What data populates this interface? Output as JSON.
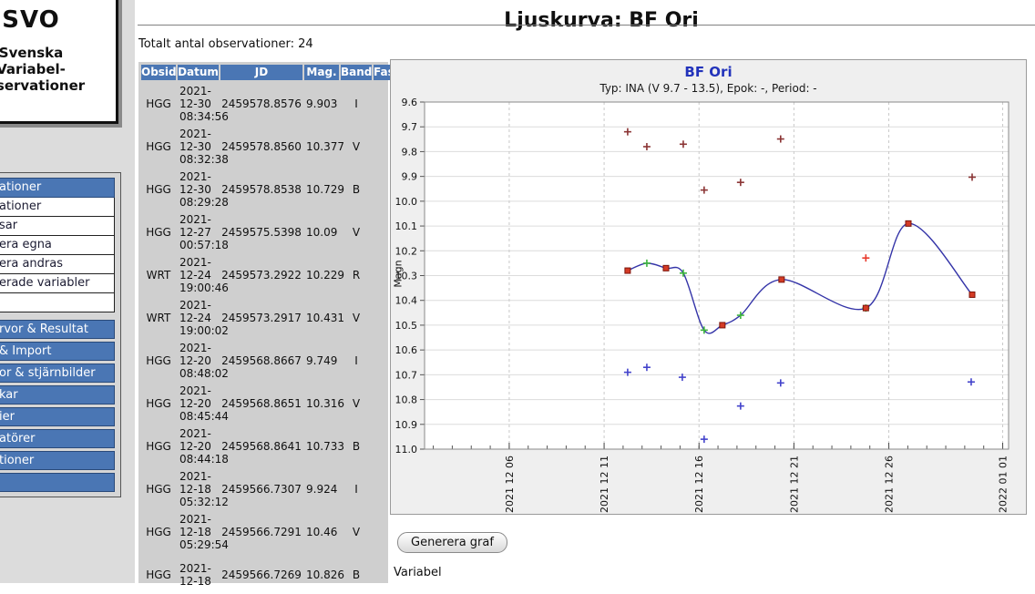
{
  "page": {
    "title": "Ljuskurva: BF Ori"
  },
  "sidebar": {
    "logo": {
      "acronym": "SVO",
      "line1": "Svenska",
      "line2": "Variabel-",
      "line3": "observationer"
    },
    "menu": {
      "header": "ationer",
      "white_items": [
        "ationer",
        "sar",
        "era egna",
        "era andras",
        "erade variabler",
        ""
      ],
      "blue_items": [
        "rvor & Resultat",
        "& Import",
        "or & stjärnbilder",
        "kar",
        "ier",
        "atörer",
        "tioner",
        ""
      ]
    }
  },
  "content": {
    "total_label": "Totalt antal observationer: 24",
    "generate_button": "Generera graf",
    "variable_label": "Variabel"
  },
  "table": {
    "headers": [
      "Obsid",
      "Datum",
      "JD",
      "Mag.",
      "Band",
      "Fas"
    ],
    "rows": [
      {
        "obsid": "HGG",
        "date_y": "2021-",
        "date_md": "12-30",
        "time": "08:34:56",
        "jd": "2459578.8576",
        "mag": "9.903",
        "band": "I",
        "fas": ""
      },
      {
        "obsid": "HGG",
        "date_y": "2021-",
        "date_md": "12-30",
        "time": "08:32:38",
        "jd": "2459578.8560",
        "mag": "10.377",
        "band": "V",
        "fas": ""
      },
      {
        "obsid": "HGG",
        "date_y": "2021-",
        "date_md": "12-30",
        "time": "08:29:28",
        "jd": "2459578.8538",
        "mag": "10.729",
        "band": "B",
        "fas": ""
      },
      {
        "obsid": "HGG",
        "date_y": "2021-",
        "date_md": "12-27",
        "time": "00:57:18",
        "jd": "2459575.5398",
        "mag": "10.09",
        "band": "V",
        "fas": ""
      },
      {
        "obsid": "WRT",
        "date_y": "2021-",
        "date_md": "12-24",
        "time": "19:00:46",
        "jd": "2459573.2922",
        "mag": "10.229",
        "band": "R",
        "fas": ""
      },
      {
        "obsid": "WRT",
        "date_y": "2021-",
        "date_md": "12-24",
        "time": "19:00:02",
        "jd": "2459573.2917",
        "mag": "10.431",
        "band": "V",
        "fas": ""
      },
      {
        "obsid": "HGG",
        "date_y": "2021-",
        "date_md": "12-20",
        "time": "08:48:02",
        "jd": "2459568.8667",
        "mag": "9.749",
        "band": "I",
        "fas": ""
      },
      {
        "obsid": "HGG",
        "date_y": "2021-",
        "date_md": "12-20",
        "time": "08:45:44",
        "jd": "2459568.8651",
        "mag": "10.316",
        "band": "V",
        "fas": ""
      },
      {
        "obsid": "HGG",
        "date_y": "2021-",
        "date_md": "12-20",
        "time": "08:44:18",
        "jd": "2459568.8641",
        "mag": "10.733",
        "band": "B",
        "fas": ""
      },
      {
        "obsid": "HGG",
        "date_y": "2021-",
        "date_md": "12-18",
        "time": "05:32:12",
        "jd": "2459566.7307",
        "mag": "9.924",
        "band": "I",
        "fas": ""
      },
      {
        "obsid": "HGG",
        "date_y": "2021-",
        "date_md": "12-18",
        "time": "05:29:54",
        "jd": "2459566.7291",
        "mag": "10.46",
        "band": "V",
        "fas": ""
      },
      {
        "obsid": "HGG",
        "date_y": "2021-",
        "date_md": "12-18",
        "time": "",
        "jd": "2459566.7269",
        "mag": "10.826",
        "band": "B",
        "fas": ""
      }
    ]
  },
  "chart_data": {
    "type": "scatter",
    "title": "BF Ori",
    "subtitle": "Typ: INA (V 9.7 - 13.5), Epok: -, Period: -",
    "ylabel": "Magn",
    "x_unit": "days since 2021-12-01 00:00 UT",
    "xlim": [
      0.54,
      31.31
    ],
    "ylim": [
      9.6,
      11.0
    ],
    "y_axis_inverted_magnitude": true,
    "y_tick_step": 0.1,
    "x_ticks": [
      {
        "day": 5,
        "label": "2021 12 06"
      },
      {
        "day": 10,
        "label": "2021 12 11"
      },
      {
        "day": 15,
        "label": "2021 12 16"
      },
      {
        "day": 20,
        "label": "2021 12 21"
      },
      {
        "day": 25,
        "label": "2021 12 26"
      },
      {
        "day": 31,
        "label": "2022 01 01"
      }
    ],
    "x_minor_tick_days": [
      1,
      31
    ],
    "grid": true,
    "legend": "none",
    "curve_color": "#3434a8",
    "series": [
      {
        "name": "I-band (dark red plus)",
        "marker": "plus",
        "color": "#8b3434",
        "in_curve": false,
        "points": [
          [
            11.24,
            9.72
          ],
          [
            12.25,
            9.78
          ],
          [
            14.17,
            9.77
          ],
          [
            15.27,
            9.955
          ],
          [
            17.19,
            9.924
          ],
          [
            19.3,
            9.749
          ],
          [
            29.39,
            9.903
          ]
        ]
      },
      {
        "name": "R-band (red plus)",
        "marker": "plus",
        "color": "#e8392b",
        "in_curve": false,
        "points": [
          [
            23.79,
            10.229
          ]
        ]
      },
      {
        "name": "B-band (blue plus)",
        "marker": "plus",
        "color": "#4343cb",
        "in_curve": false,
        "points": [
          [
            11.24,
            10.69
          ],
          [
            12.25,
            10.67
          ],
          [
            14.12,
            10.71
          ],
          [
            15.27,
            10.96
          ],
          [
            17.19,
            10.826
          ],
          [
            19.3,
            10.733
          ],
          [
            29.34,
            10.729
          ]
        ]
      },
      {
        "name": "V-band (green plus)",
        "marker": "plus",
        "color": "#3cb43c",
        "in_curve": true,
        "points": [
          [
            12.25,
            10.25
          ],
          [
            14.17,
            10.29
          ],
          [
            15.27,
            10.52
          ],
          [
            17.19,
            10.46
          ],
          [
            23.79,
            10.431
          ]
        ]
      },
      {
        "name": "V-band (red square)",
        "marker": "square",
        "color": "#d43b25",
        "in_curve": true,
        "points": [
          [
            11.24,
            10.28
          ],
          [
            13.26,
            10.27
          ],
          [
            16.23,
            10.5
          ],
          [
            19.35,
            10.316
          ],
          [
            23.79,
            10.431
          ],
          [
            26.03,
            10.09
          ],
          [
            29.39,
            10.377
          ]
        ]
      }
    ]
  }
}
